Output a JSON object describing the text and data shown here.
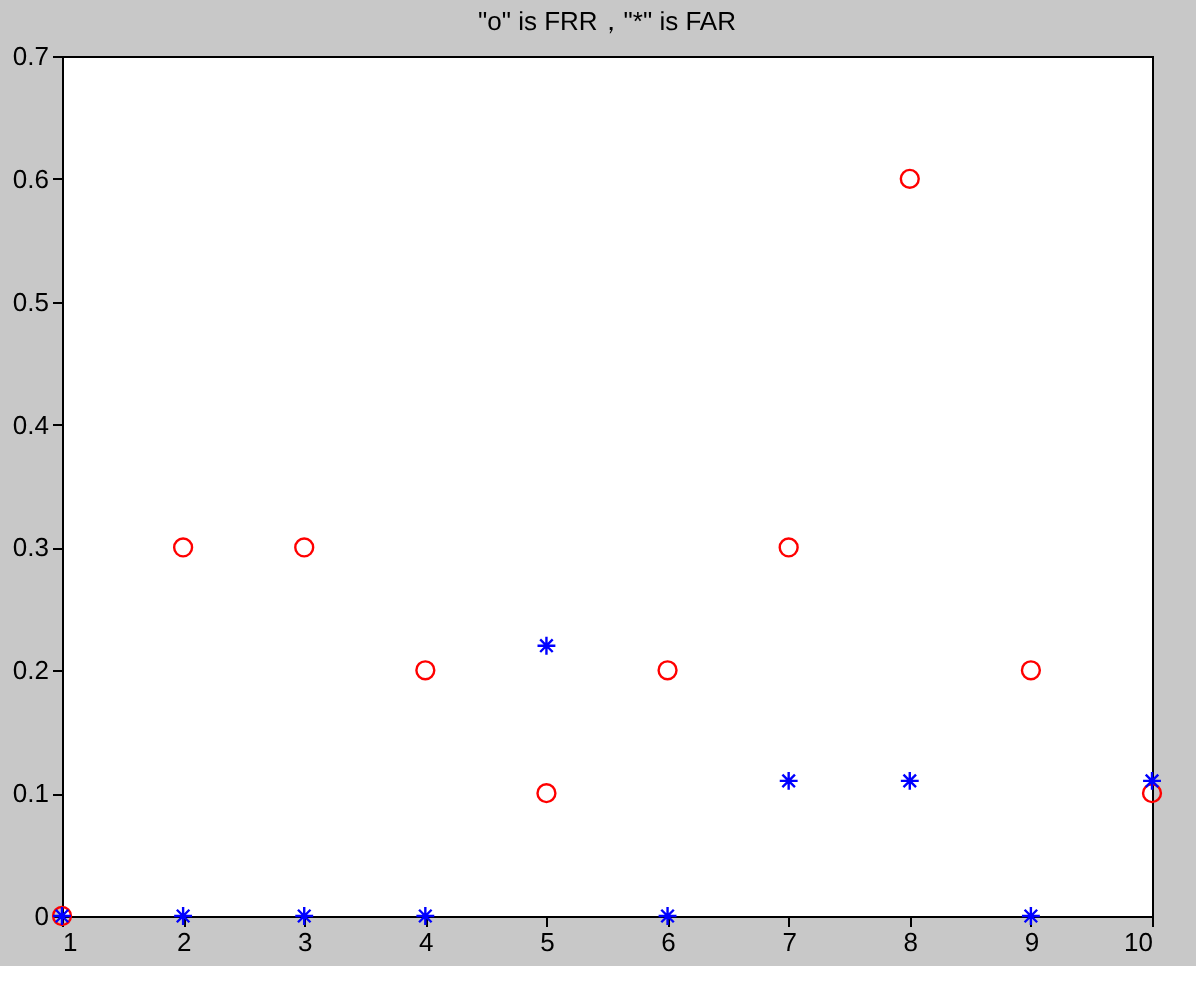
{
  "chart_data": {
    "type": "scatter",
    "title": "\"o\" is FRR，\"*\" is FAR",
    "x": [
      1,
      2,
      3,
      4,
      5,
      6,
      7,
      8,
      9,
      10
    ],
    "series": [
      {
        "color": "#ff0000",
        "marker": "circle",
        "values": [
          0,
          0.3,
          0.3,
          0.2,
          0.1,
          0.2,
          0.3,
          0.6,
          0.2,
          0.1
        ]
      },
      {
        "color": "#0000ff",
        "marker": "cross",
        "values": [
          0,
          0,
          0,
          0,
          0.22,
          0,
          0.11,
          0.11,
          0,
          0.11
        ]
      }
    ],
    "xlim": [
      1,
      10
    ],
    "xticks": [
      1,
      2,
      3,
      4,
      5,
      6,
      7,
      8,
      9,
      10
    ],
    "ylim": [
      0,
      0.7
    ],
    "yticks": [
      0,
      0.1,
      0.2,
      0.3,
      0.4,
      0.5,
      0.6,
      0.7
    ],
    "grid": false
  }
}
